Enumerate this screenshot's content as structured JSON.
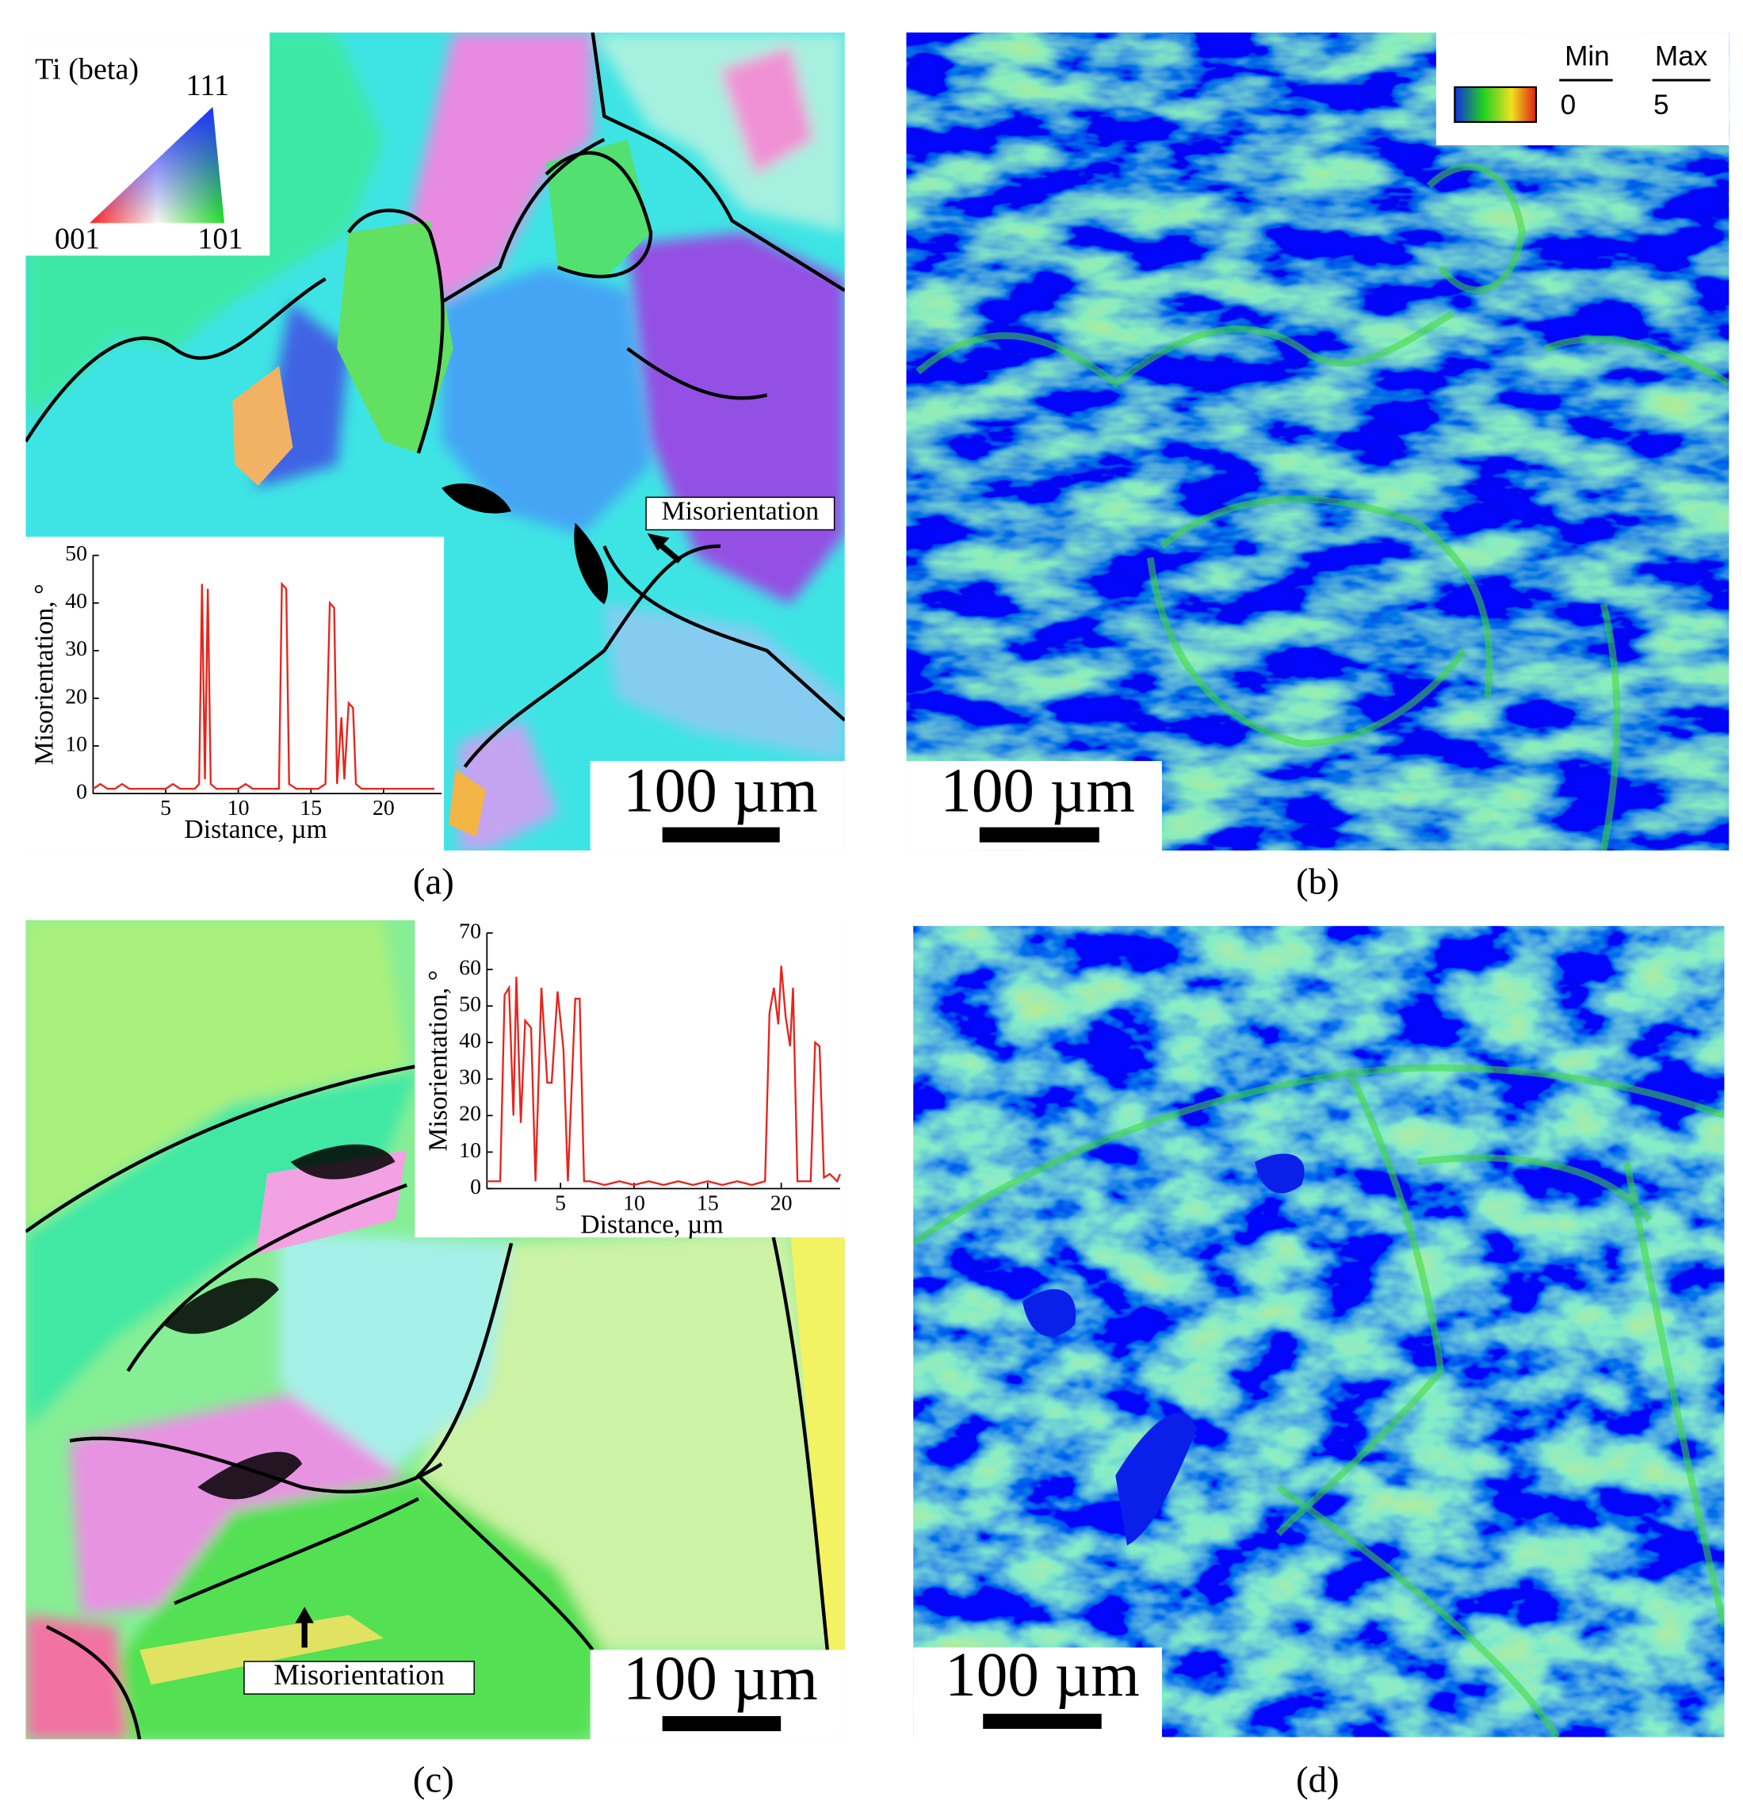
{
  "panels": [
    {
      "label": "(a)",
      "scale_bar": "100 µm",
      "legend": {
        "title": "Ti (beta)",
        "corners": [
          "111",
          "001",
          "101"
        ]
      },
      "annotation": "Misorientation"
    },
    {
      "label": "(b)",
      "scale_bar": "100 µm",
      "colorbar": {
        "min_label": "Min",
        "max_label": "Max",
        "min": 0,
        "max": 5
      }
    },
    {
      "label": "(c)",
      "scale_bar": "100 µm",
      "annotation": "Misorientation"
    },
    {
      "label": "(d)",
      "scale_bar": "100 µm"
    }
  ],
  "chart_data": [
    {
      "type": "line",
      "xlabel": "Distance, µm",
      "ylabel": "Misorientation, °",
      "x": [
        0,
        0.5,
        1,
        1.5,
        2,
        2.5,
        3,
        3.5,
        4,
        4.5,
        5,
        5.5,
        6,
        6.5,
        7,
        7.3,
        7.5,
        7.7,
        7.9,
        8.1,
        8.5,
        9,
        10,
        10.5,
        11,
        12,
        12.8,
        13,
        13.3,
        13.5,
        14,
        15,
        15.5,
        16,
        16.3,
        16.6,
        16.8,
        17.1,
        17.3,
        17.6,
        17.9,
        18.1,
        18.5,
        19,
        20,
        21,
        22,
        23,
        23.5
      ],
      "series": [
        {
          "color": "#e8241c",
          "values": [
            1,
            2,
            1,
            1,
            2,
            1,
            1,
            1,
            1,
            1,
            1,
            2,
            1,
            1,
            1,
            2,
            44,
            3,
            43,
            2,
            1,
            1,
            1,
            2,
            1,
            1,
            1,
            44,
            43,
            2,
            1,
            1,
            1,
            2,
            40,
            39,
            2,
            16,
            3,
            19,
            18,
            2,
            1,
            1,
            1,
            1,
            1,
            1,
            1
          ]
        }
      ],
      "xlim": [
        0,
        24
      ],
      "ylim": [
        0,
        50
      ],
      "xticks": [
        5,
        10,
        15,
        20
      ],
      "yticks": [
        0,
        10,
        20,
        30,
        40,
        50
      ]
    },
    {
      "type": "line",
      "xlabel": "Distance, µm",
      "ylabel": "Misorientation, °",
      "x": [
        0,
        0.5,
        0.9,
        1.2,
        1.5,
        1.8,
        2,
        2.3,
        2.6,
        3,
        3.3,
        3.7,
        4.1,
        4.4,
        4.8,
        5.2,
        5.5,
        6,
        6.3,
        6.6,
        7,
        8,
        9,
        10,
        11,
        12,
        13,
        14,
        15,
        16,
        17,
        18,
        18.9,
        19.2,
        19.5,
        19.8,
        20,
        20.3,
        20.6,
        20.8,
        21.1,
        21.5,
        22,
        22.3,
        22.6,
        22.9,
        23.3,
        23.8,
        24
      ],
      "series": [
        {
          "color": "#e8241c",
          "values": [
            2,
            2,
            2,
            53,
            55,
            20,
            58,
            18,
            46,
            44,
            2,
            55,
            29,
            29,
            54,
            38,
            2,
            52,
            52,
            2,
            2,
            1,
            2,
            1,
            2,
            1,
            2,
            1,
            2,
            1,
            2,
            1,
            2,
            48,
            55,
            45,
            61,
            47,
            39,
            55,
            2,
            2,
            2,
            40,
            39,
            3,
            4,
            2,
            4
          ]
        }
      ],
      "xlim": [
        0,
        24
      ],
      "ylim": [
        0,
        70
      ],
      "xticks": [
        5,
        10,
        15,
        20
      ],
      "yticks": [
        0,
        10,
        20,
        30,
        40,
        50,
        60,
        70
      ]
    }
  ]
}
